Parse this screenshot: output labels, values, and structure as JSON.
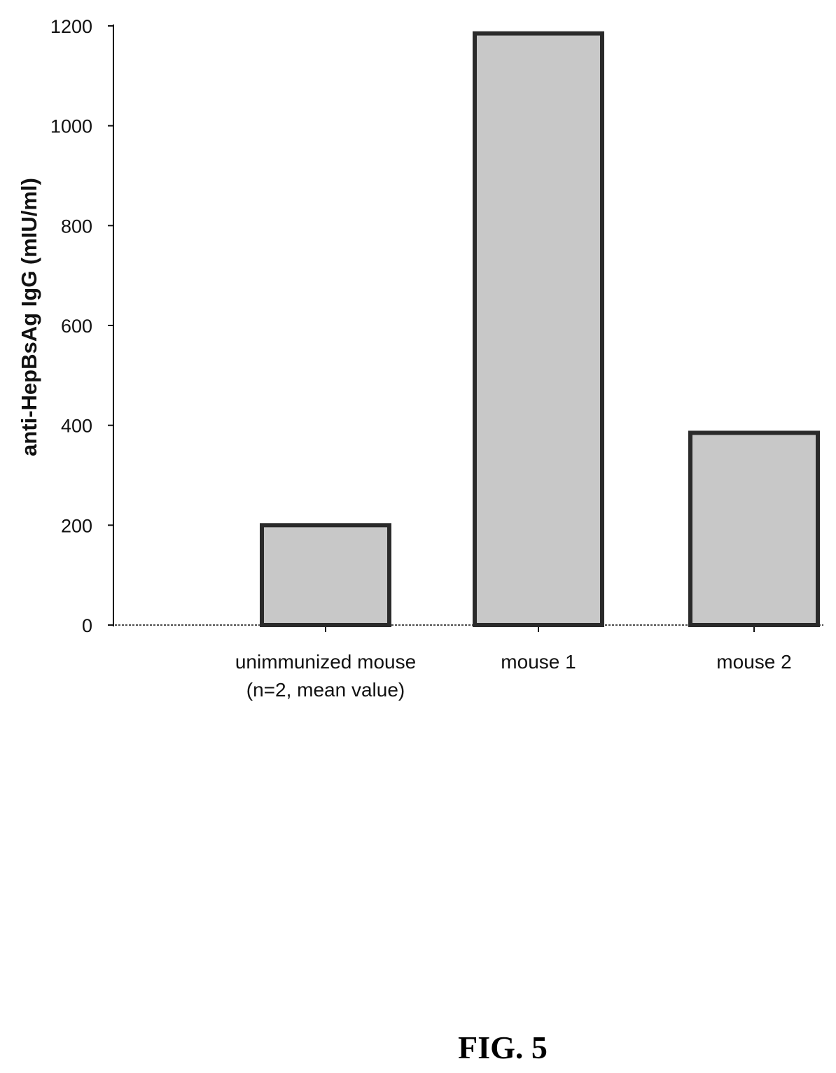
{
  "figure_label": "FIG. 5",
  "colors": {
    "bar_fill": "#c8c8c8",
    "bar_stroke": "#2a2a2a",
    "axis": "#111111"
  },
  "chart_data": {
    "type": "bar",
    "ylabel": "anti-HepBsAg IgG (mIU/ml)",
    "xlabel": "",
    "categories": [
      [
        "unimmunized mouse",
        "(n=2, mean value)"
      ],
      [
        "mouse 1"
      ],
      [
        "mouse 2"
      ]
    ],
    "values": [
      200,
      1185,
      385
    ],
    "ylim": [
      0,
      1200
    ],
    "yticks": [
      0,
      200,
      400,
      600,
      800,
      1000,
      1200
    ],
    "grid": false,
    "legend": "none"
  }
}
